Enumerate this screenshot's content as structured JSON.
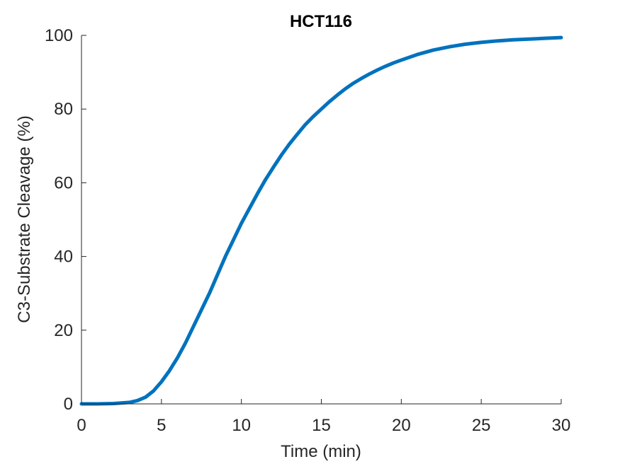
{
  "chart_data": {
    "type": "line",
    "title": "HCT116",
    "xlabel": "Time (min)",
    "ylabel": "C3-Substrate Cleavage (%)",
    "xlim": [
      0,
      30
    ],
    "ylim": [
      0,
      100
    ],
    "xticks": [
      0,
      5,
      10,
      15,
      20,
      25,
      30
    ],
    "yticks": [
      0,
      20,
      40,
      60,
      80,
      100
    ],
    "grid": false,
    "legend": "none",
    "series_color": "#0072BD",
    "series": [
      {
        "x": [
          0,
          1,
          2,
          3,
          3.5,
          4,
          4.5,
          5,
          5.5,
          6,
          6.5,
          7,
          7.5,
          8,
          8.5,
          9,
          9.5,
          10,
          10.5,
          11,
          11.5,
          12,
          12.5,
          13,
          13.5,
          14,
          14.5,
          15,
          15.5,
          16,
          16.5,
          17,
          17.5,
          18,
          18.5,
          19,
          19.5,
          20,
          21,
          22,
          23,
          24,
          25,
          26,
          27,
          28,
          29,
          30
        ],
        "y": [
          0,
          0,
          0.1,
          0.4,
          0.9,
          1.8,
          3.5,
          6.0,
          9.0,
          12.5,
          16.5,
          21.0,
          25.5,
          30.0,
          35.0,
          40.0,
          44.5,
          49.0,
          53.0,
          57.0,
          60.8,
          64.2,
          67.5,
          70.5,
          73.2,
          75.8,
          78.0,
          80.0,
          82.0,
          83.8,
          85.5,
          87.0,
          88.3,
          89.5,
          90.6,
          91.6,
          92.5,
          93.3,
          94.8,
          96.0,
          96.9,
          97.6,
          98.1,
          98.5,
          98.8,
          99.0,
          99.2,
          99.4
        ]
      }
    ]
  }
}
